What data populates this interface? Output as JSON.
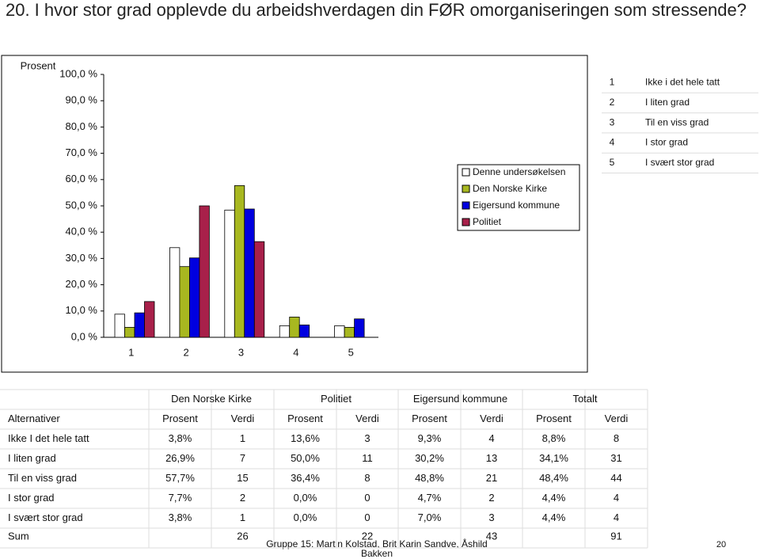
{
  "title": "20. I hvor stor grad opplevde du arbeidshverdagen din FØR omorganiseringen som stressende?",
  "chart_data": {
    "type": "bar",
    "y_label": "Prosent",
    "categories": [
      "1",
      "2",
      "3",
      "4",
      "5"
    ],
    "category_labels": [
      "Ikke i det hele tatt",
      "I liten grad",
      "Til en viss grad",
      "I stor grad",
      "I svært stor grad"
    ],
    "series": [
      {
        "name": "Denne undersøkelsen",
        "color": "#ffffff",
        "values": [
          8.8,
          34.1,
          48.4,
          4.4,
          4.4
        ]
      },
      {
        "name": "Den Norske Kirke",
        "color": "#a8b820",
        "values": [
          3.8,
          26.9,
          57.7,
          7.7,
          3.8
        ]
      },
      {
        "name": "Eigersund kommune",
        "color": "#0000e0",
        "values": [
          9.3,
          30.2,
          48.8,
          4.7,
          7.0
        ]
      },
      {
        "name": "Politiet",
        "color": "#a8204a",
        "values": [
          13.6,
          50.0,
          36.4,
          0.0,
          0.0
        ]
      }
    ],
    "ylim": [
      0,
      100
    ],
    "yticks": [
      {
        "value": 0,
        "label": "0,0 %"
      },
      {
        "value": 10,
        "label": "10,0 %"
      },
      {
        "value": 20,
        "label": "20,0 %"
      },
      {
        "value": 30,
        "label": "30,0 %"
      },
      {
        "value": 40,
        "label": "40,0 %"
      },
      {
        "value": 50,
        "label": "50,0 %"
      },
      {
        "value": 60,
        "label": "60,0 %"
      },
      {
        "value": 70,
        "label": "70,0 %"
      },
      {
        "value": 80,
        "label": "80,0 %"
      },
      {
        "value": 90,
        "label": "90,0 %"
      },
      {
        "value": 100,
        "label": "100,0 %"
      }
    ]
  },
  "table": {
    "group_headers": [
      "Den Norske Kirke",
      "Politiet",
      "Eigersund kommune",
      "Totalt"
    ],
    "columns": [
      "Alternativer",
      "Prosent",
      "Verdi",
      "Prosent",
      "Verdi",
      "Prosent",
      "Verdi",
      "Prosent",
      "Verdi"
    ],
    "rows": [
      [
        "Ikke I det hele tatt",
        "3,8%",
        "1",
        "13,6%",
        "3",
        "9,3%",
        "4",
        "8,8%",
        "8"
      ],
      [
        "I liten grad",
        "26,9%",
        "7",
        "50,0%",
        "11",
        "30,2%",
        "13",
        "34,1%",
        "31"
      ],
      [
        "Til en viss grad",
        "57,7%",
        "15",
        "36,4%",
        "8",
        "48,8%",
        "21",
        "48,4%",
        "44"
      ],
      [
        "I stor grad",
        "7,7%",
        "2",
        "0,0%",
        "0",
        "4,7%",
        "2",
        "4,4%",
        "4"
      ],
      [
        "I svært stor grad",
        "3,8%",
        "1",
        "0,0%",
        "0",
        "7,0%",
        "3",
        "4,4%",
        "4"
      ]
    ],
    "sum": {
      "label": "Sum",
      "values": [
        "26",
        "22",
        "43",
        "91"
      ]
    }
  },
  "footer": [
    "Gruppe 15: Martin Kolstad, Brit Karin Sandve, Åshild",
    "Bakken"
  ],
  "page_number": "20"
}
